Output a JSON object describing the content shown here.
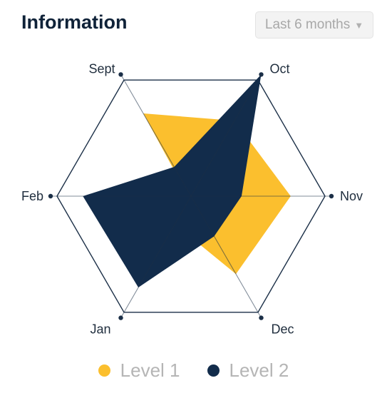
{
  "header": {
    "title": "Information",
    "range_label": "Last 6 months",
    "range_icon": "chevron-down-icon"
  },
  "chart_data": {
    "type": "radar",
    "title": "Information",
    "axes": [
      "Oct",
      "Nov",
      "Dec",
      "Jan",
      "Feb",
      "Sept"
    ],
    "rlim": [
      0,
      1
    ],
    "grid": false,
    "series": [
      {
        "name": "Level 1",
        "color": "#fbbf2e",
        "values": [
          0.62,
          0.71,
          0.64,
          0.23,
          0.02,
          0.68
        ]
      },
      {
        "name": "Level 2",
        "color": "#122c4b",
        "values": [
          1.0,
          0.36,
          0.33,
          0.75,
          0.77,
          0.24
        ]
      }
    ],
    "legend_position": "bottom"
  },
  "legend": [
    {
      "label": "Level 1",
      "color": "#fbbf2e"
    },
    {
      "label": "Level 2",
      "color": "#122c4b"
    }
  ]
}
